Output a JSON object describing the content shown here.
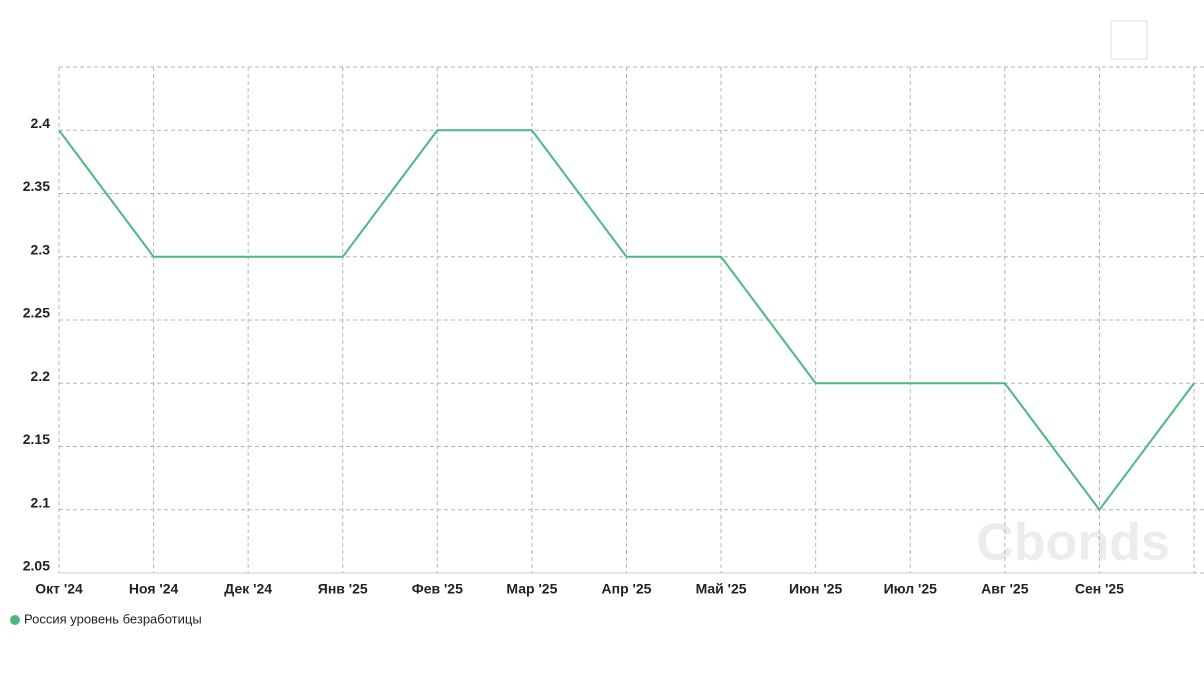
{
  "chart_data": {
    "type": "line",
    "categories": [
      "Окт '24",
      "Ноя '24",
      "Дек '24",
      "Янв '25",
      "Фев '25",
      "Мар '25",
      "Апр '25",
      "Май '25",
      "Июн '25",
      "Июл '25",
      "Авг '25",
      "Сен '25",
      null
    ],
    "series": [
      {
        "name": "Россия уровень безработицы",
        "color": "#4cb97f",
        "values": [
          2.4,
          2.3,
          2.3,
          2.3,
          2.4,
          2.4,
          2.3,
          2.3,
          2.2,
          2.2,
          2.2,
          2.1,
          2.2
        ]
      }
    ],
    "ylim": [
      2.05,
      2.45
    ],
    "yticks": [
      2.05,
      2.1,
      2.15,
      2.2,
      2.25,
      2.3,
      2.35,
      2.4
    ],
    "grid": true,
    "legend": "bottom-left",
    "watermark": "Cbonds"
  }
}
